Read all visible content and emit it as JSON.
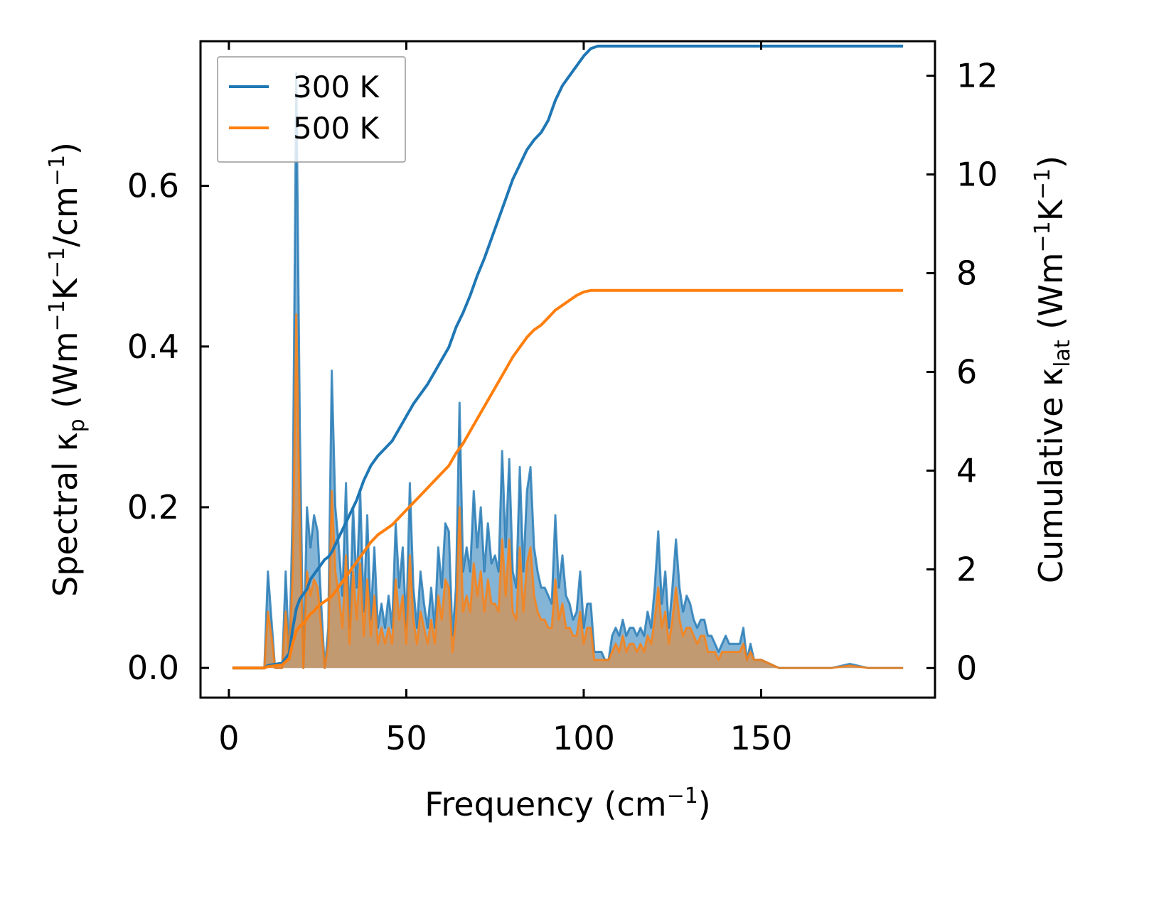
{
  "chart_data": {
    "type": "area+line",
    "xlabel": "Frequency (cm",
    "xlabel_sup": "−1",
    "xlabel_tail": ")",
    "ylabel_left": {
      "pre": "Spectral κ",
      "sub": "p",
      "mid": " (Wm",
      "sup1": "−1",
      "k": "K",
      "sup2": "−1",
      "tail": "/cm",
      "sup3": "−1",
      "end": ")"
    },
    "ylabel_right": {
      "pre": "Cumulative κ",
      "sub": "lat",
      "mid": " (Wm",
      "sup1": "−1",
      "k": "K",
      "sup2": "−1",
      "end": ")"
    },
    "xlim": [
      -8,
      199
    ],
    "ylim_left": [
      -0.037,
      0.78
    ],
    "ylim_right": [
      -0.6,
      12.7
    ],
    "xticks": [
      0,
      50,
      100,
      150
    ],
    "xtick_labels": [
      "0",
      "50",
      "100",
      "150"
    ],
    "yticks_left": [
      0.0,
      0.2,
      0.4,
      0.6
    ],
    "ytick_labels_left": [
      "0.0",
      "0.2",
      "0.4",
      "0.6"
    ],
    "yticks_right": [
      0,
      2,
      4,
      6,
      8,
      10,
      12
    ],
    "ytick_labels_right": [
      "0",
      "2",
      "4",
      "6",
      "8",
      "10",
      "12"
    ],
    "legend": [
      {
        "label": "300 K",
        "color": "#1f77b4"
      },
      {
        "label": "500 K",
        "color": "#ff7f0e"
      }
    ],
    "spectral": {
      "x": [
        1,
        9,
        10,
        11,
        12,
        13,
        15,
        16,
        17,
        18,
        19,
        20,
        21,
        22,
        23,
        24,
        25,
        26,
        27,
        28,
        29,
        30,
        31,
        32,
        33,
        34,
        35,
        36,
        37,
        38,
        39,
        40,
        41,
        42,
        43,
        44,
        45,
        46,
        47,
        48,
        49,
        50,
        51,
        52,
        53,
        54,
        55,
        56,
        57,
        58,
        59,
        60,
        61,
        62,
        63,
        64,
        65,
        66,
        67,
        68,
        69,
        70,
        71,
        72,
        73,
        74,
        75,
        76,
        77,
        78,
        79,
        80,
        81,
        82,
        83,
        84,
        85,
        86,
        87,
        88,
        89,
        90,
        91,
        92,
        93,
        94,
        95,
        96,
        97,
        98,
        99,
        100,
        101,
        102,
        103,
        104,
        105,
        106,
        107,
        108,
        109,
        110,
        111,
        112,
        113,
        114,
        115,
        116,
        117,
        118,
        119,
        120,
        121,
        122,
        123,
        124,
        125,
        126,
        127,
        128,
        129,
        130,
        131,
        132,
        133,
        134,
        135,
        136,
        137,
        138,
        139,
        140,
        141,
        142,
        143,
        144,
        145,
        146,
        147,
        148,
        150,
        155,
        160,
        165,
        170,
        175,
        180,
        190
      ],
      "y300": [
        0,
        0,
        0,
        0.12,
        0.06,
        0,
        0,
        0.12,
        0.01,
        0.2,
        0.74,
        0.3,
        0,
        0.2,
        0.15,
        0.19,
        0.17,
        0.08,
        0,
        0.05,
        0.37,
        0.2,
        0.15,
        0.09,
        0.23,
        0.05,
        0.2,
        0.1,
        0.22,
        0.07,
        0.19,
        0.06,
        0.15,
        0.05,
        0.08,
        0.05,
        0.09,
        0.05,
        0.18,
        0.1,
        0.15,
        0.05,
        0.23,
        0.1,
        0.05,
        0.12,
        0.08,
        0.05,
        0.1,
        0.05,
        0.15,
        0.1,
        0.18,
        0.17,
        0.04,
        0.1,
        0.33,
        0.12,
        0.15,
        0.12,
        0.22,
        0.15,
        0.2,
        0.12,
        0.18,
        0.13,
        0.14,
        0.12,
        0.27,
        0.15,
        0.26,
        0.12,
        0.1,
        0.25,
        0.12,
        0.22,
        0.25,
        0.15,
        0.12,
        0.1,
        0.1,
        0.09,
        0.08,
        0.19,
        0.1,
        0.14,
        0.09,
        0.08,
        0.06,
        0.07,
        0.12,
        0.05,
        0.08,
        0.08,
        0.02,
        0.02,
        0.02,
        0.01,
        0.01,
        0.04,
        0.05,
        0.04,
        0.06,
        0.04,
        0.05,
        0.05,
        0.04,
        0.05,
        0.04,
        0.07,
        0.05,
        0.1,
        0.17,
        0.08,
        0.12,
        0.05,
        0.1,
        0.16,
        0.1,
        0.07,
        0.09,
        0.08,
        0.06,
        0.05,
        0.06,
        0.06,
        0.04,
        0.04,
        0.03,
        0.02,
        0.03,
        0.04,
        0.03,
        0.03,
        0.03,
        0.03,
        0.05,
        0.01,
        0.03,
        0.01,
        0.01,
        0,
        0,
        0,
        0,
        0.005,
        0,
        0,
        0
      ],
      "y500": [
        0,
        0,
        0,
        0.07,
        0.04,
        0,
        0,
        0.07,
        0.01,
        0.12,
        0.44,
        0.18,
        0,
        0.12,
        0.09,
        0.11,
        0.1,
        0.05,
        0,
        0.03,
        0.22,
        0.12,
        0.09,
        0.05,
        0.14,
        0.03,
        0.12,
        0.06,
        0.13,
        0.04,
        0.11,
        0.04,
        0.09,
        0.03,
        0.05,
        0.03,
        0.05,
        0.03,
        0.11,
        0.06,
        0.09,
        0.03,
        0.14,
        0.06,
        0.03,
        0.07,
        0.05,
        0.03,
        0.06,
        0.03,
        0.09,
        0.06,
        0.11,
        0.1,
        0.02,
        0.06,
        0.2,
        0.07,
        0.09,
        0.07,
        0.13,
        0.09,
        0.12,
        0.07,
        0.11,
        0.08,
        0.08,
        0.07,
        0.16,
        0.09,
        0.16,
        0.07,
        0.06,
        0.15,
        0.07,
        0.13,
        0.15,
        0.09,
        0.07,
        0.06,
        0.06,
        0.05,
        0.05,
        0.11,
        0.06,
        0.08,
        0.05,
        0.05,
        0.04,
        0.04,
        0.07,
        0.03,
        0.05,
        0.05,
        0.01,
        0.01,
        0.01,
        0.01,
        0.01,
        0.02,
        0.03,
        0.02,
        0.04,
        0.02,
        0.03,
        0.03,
        0.02,
        0.03,
        0.02,
        0.04,
        0.03,
        0.06,
        0.1,
        0.05,
        0.07,
        0.03,
        0.06,
        0.1,
        0.06,
        0.04,
        0.05,
        0.05,
        0.04,
        0.03,
        0.04,
        0.04,
        0.02,
        0.02,
        0.02,
        0.01,
        0.02,
        0.02,
        0.02,
        0.02,
        0.02,
        0.02,
        0.03,
        0.01,
        0.02,
        0.01,
        0.01,
        0,
        0,
        0,
        0,
        0.003,
        0,
        0,
        0
      ]
    },
    "cumulative": {
      "x": [
        1,
        10,
        11,
        15,
        17,
        18,
        19,
        20,
        21,
        22,
        23,
        24,
        25,
        26,
        27,
        28,
        29,
        30,
        32,
        34,
        36,
        38,
        40,
        42,
        44,
        46,
        48,
        50,
        52,
        54,
        56,
        58,
        60,
        62,
        64,
        66,
        68,
        70,
        72,
        74,
        76,
        78,
        80,
        82,
        84,
        86,
        88,
        90,
        92,
        94,
        96,
        98,
        100,
        102,
        104,
        106,
        108,
        110,
        112,
        114,
        116,
        118,
        120,
        122,
        124,
        126,
        128,
        130,
        132,
        135,
        140,
        145,
        150,
        160,
        170,
        180,
        190
      ],
      "y300": [
        0,
        0,
        0.05,
        0.1,
        0.3,
        0.8,
        1.2,
        1.4,
        1.5,
        1.6,
        1.8,
        1.9,
        2.0,
        2.1,
        2.2,
        2.25,
        2.35,
        2.5,
        2.8,
        3.1,
        3.4,
        3.8,
        4.1,
        4.3,
        4.45,
        4.6,
        4.85,
        5.1,
        5.35,
        5.55,
        5.75,
        6.0,
        6.25,
        6.5,
        6.9,
        7.2,
        7.55,
        7.95,
        8.3,
        8.7,
        9.1,
        9.5,
        9.9,
        10.2,
        10.5,
        10.7,
        10.85,
        11.1,
        11.5,
        11.8,
        12.0,
        12.2,
        12.4,
        12.55,
        12.6,
        12.6,
        12.6,
        12.6,
        12.6,
        12.6,
        12.6,
        12.6,
        12.6,
        12.6,
        12.6,
        12.6,
        12.6,
        12.6,
        12.6,
        12.6,
        12.6,
        12.6,
        12.6,
        12.6,
        12.6,
        12.6,
        12.6
      ],
      "y500": [
        0,
        0,
        0.03,
        0.06,
        0.2,
        0.5,
        0.75,
        0.85,
        0.9,
        1.0,
        1.1,
        1.15,
        1.25,
        1.3,
        1.35,
        1.4,
        1.45,
        1.55,
        1.75,
        1.95,
        2.15,
        2.35,
        2.55,
        2.7,
        2.8,
        2.9,
        3.05,
        3.2,
        3.35,
        3.5,
        3.65,
        3.8,
        3.95,
        4.1,
        4.35,
        4.55,
        4.8,
        5.05,
        5.3,
        5.55,
        5.8,
        6.05,
        6.3,
        6.5,
        6.7,
        6.85,
        6.95,
        7.1,
        7.25,
        7.35,
        7.45,
        7.55,
        7.62,
        7.65,
        7.65,
        7.65,
        7.65,
        7.65,
        7.65,
        7.65,
        7.65,
        7.65,
        7.65,
        7.65,
        7.65,
        7.65,
        7.65,
        7.65,
        7.65,
        7.65,
        7.65,
        7.65,
        7.65,
        7.65,
        7.65,
        7.65,
        7.65
      ]
    }
  }
}
